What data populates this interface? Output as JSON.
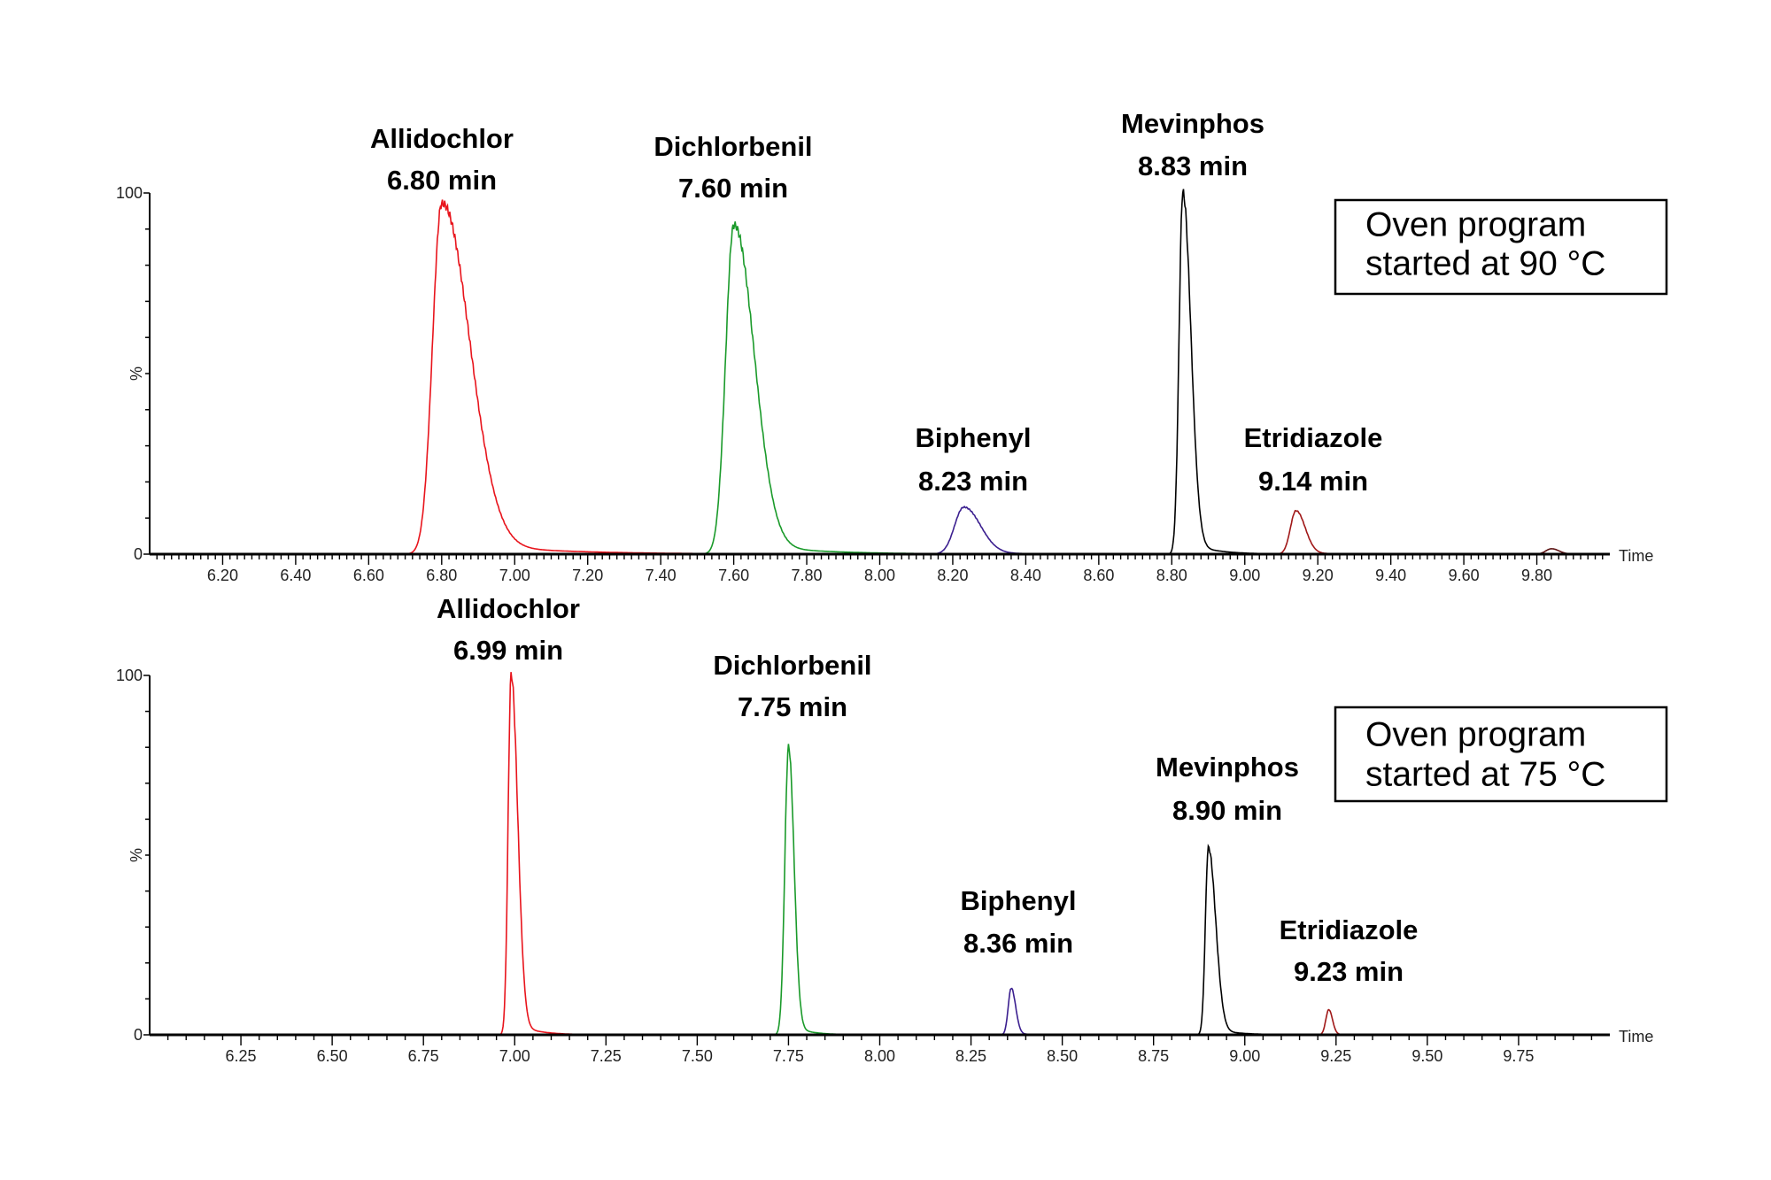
{
  "chart_data": [
    {
      "type": "line",
      "title": "",
      "xlabel": "Time",
      "ylabel": "%",
      "xlim": [
        6.0,
        10.0
      ],
      "ylim": [
        0,
        100
      ],
      "x_tick_step": 0.2,
      "x_minor_step": 0.02,
      "x_ticks": [
        "6.20",
        "6.40",
        "6.60",
        "6.80",
        "7.00",
        "7.20",
        "7.40",
        "7.60",
        "7.80",
        "8.00",
        "8.20",
        "8.40",
        "8.60",
        "8.80",
        "9.00",
        "9.20",
        "9.40",
        "9.60",
        "9.80"
      ],
      "y_ticks": [
        "0",
        "100"
      ],
      "annotation_box": {
        "line1": "Oven program",
        "line2": "started at 90 °C"
      },
      "grid": false,
      "series": [
        {
          "name": "Allidochlor",
          "rt_label": "6.80 min",
          "rt": 6.8,
          "height": 97,
          "width_left": 0.025,
          "width_right": 0.075,
          "color": "#e8141c"
        },
        {
          "name": "Dichlorbenil",
          "rt_label": "7.60 min",
          "rt": 7.6,
          "height": 91,
          "width_left": 0.022,
          "width_right": 0.055,
          "color": "#1a9a2a"
        },
        {
          "name": "Biphenyl",
          "rt_label": "8.23 min",
          "rt": 8.23,
          "height": 13,
          "width_left": 0.025,
          "width_right": 0.045,
          "color": "#3b1f8f"
        },
        {
          "name": "Mevinphos",
          "rt_label": "8.83 min",
          "rt": 8.83,
          "height": 100,
          "width_left": 0.01,
          "width_right": 0.022,
          "color": "#000000"
        },
        {
          "name": "Etridiazole",
          "rt_label": "9.14 min",
          "rt": 9.14,
          "height": 12,
          "width_left": 0.015,
          "width_right": 0.025,
          "color": "#a01818"
        },
        {
          "name": "",
          "rt_label": "",
          "rt": 9.84,
          "height": 1.5,
          "width_left": 0.015,
          "width_right": 0.02,
          "color": "#5a1010"
        }
      ]
    },
    {
      "type": "line",
      "title": "",
      "xlabel": "Time",
      "ylabel": "%",
      "xlim": [
        6.0,
        10.0
      ],
      "ylim": [
        0,
        100
      ],
      "x_tick_step": 0.25,
      "x_minor_step": 0.05,
      "x_ticks": [
        "6.25",
        "6.50",
        "6.75",
        "7.00",
        "7.25",
        "7.50",
        "7.75",
        "8.00",
        "8.25",
        "8.50",
        "8.75",
        "9.00",
        "9.25",
        "9.50",
        "9.75"
      ],
      "y_ticks": [
        "0",
        "100"
      ],
      "annotation_box": {
        "line1": "Oven program",
        "line2": "started at 75 °C"
      },
      "grid": false,
      "series": [
        {
          "name": "Allidochlor",
          "rt_label": "6.99 min",
          "rt": 6.99,
          "height": 100,
          "width_left": 0.008,
          "width_right": 0.018,
          "color": "#e8141c"
        },
        {
          "name": "Dichlorbenil",
          "rt_label": "7.75 min",
          "rt": 7.75,
          "height": 80,
          "width_left": 0.01,
          "width_right": 0.015,
          "color": "#1a9a2a"
        },
        {
          "name": "Biphenyl",
          "rt_label": "8.36 min",
          "rt": 8.36,
          "height": 13,
          "width_left": 0.008,
          "width_right": 0.012,
          "color": "#3b1f8f"
        },
        {
          "name": "Mevinphos",
          "rt_label": "8.90 min",
          "rt": 8.9,
          "height": 52,
          "width_left": 0.008,
          "width_right": 0.02,
          "color": "#000000"
        },
        {
          "name": "Etridiazole",
          "rt_label": "9.23 min",
          "rt": 9.23,
          "height": 7,
          "width_left": 0.008,
          "width_right": 0.01,
          "color": "#a01818"
        }
      ]
    }
  ]
}
